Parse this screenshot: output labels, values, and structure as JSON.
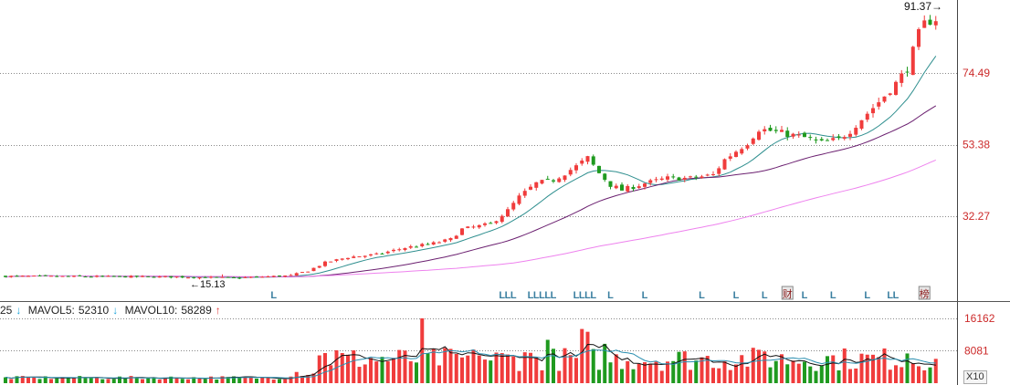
{
  "chart_data": {
    "type": "candlestick",
    "price_axis": {
      "ticks": [
        74.49,
        53.38,
        32.27
      ],
      "ylim": [
        10.5,
        95
      ]
    },
    "annotations": {
      "high": "91.37",
      "low": "15.13"
    },
    "volume_axis": {
      "ticks": [
        "16162",
        "8081"
      ],
      "unit": "X10",
      "ylim": [
        0,
        17500
      ]
    },
    "mavol": {
      "prefix": "25",
      "mavol5_label": "MAVOL5:",
      "mavol5_value": "52310",
      "mavol10_label": "MAVOL10:",
      "mavol10_value": "58289"
    },
    "markers": [
      {
        "i": 47,
        "text": "L"
      },
      {
        "i": 87,
        "text": "L"
      },
      {
        "i": 88,
        "text": "L"
      },
      {
        "i": 89,
        "text": "L"
      },
      {
        "i": 92,
        "text": "L"
      },
      {
        "i": 93,
        "text": "L"
      },
      {
        "i": 94,
        "text": "L"
      },
      {
        "i": 95,
        "text": "L"
      },
      {
        "i": 96,
        "text": "L"
      },
      {
        "i": 100,
        "text": "L"
      },
      {
        "i": 101,
        "text": "L"
      },
      {
        "i": 102,
        "text": "L"
      },
      {
        "i": 103,
        "text": "L"
      },
      {
        "i": 106,
        "text": "L"
      },
      {
        "i": 112,
        "text": "L"
      },
      {
        "i": 122,
        "text": "L"
      },
      {
        "i": 128,
        "text": "L"
      },
      {
        "i": 133,
        "text": "L"
      },
      {
        "i": 137,
        "text": "财",
        "boxed": true
      },
      {
        "i": 140,
        "text": "L"
      },
      {
        "i": 145,
        "text": "L"
      },
      {
        "i": 151,
        "text": "L"
      },
      {
        "i": 155,
        "text": "L"
      },
      {
        "i": 156,
        "text": "L"
      },
      {
        "i": 161,
        "text": "榜",
        "boxed": true
      }
    ],
    "colors": {
      "up": "#f03c3c",
      "down": "#1f9a1f",
      "ma_short": "#2f8f8f",
      "ma_mid": "#6b2070",
      "ma_long": "#ee82ee",
      "grid": "#888888",
      "marker": "#3a7fa0"
    },
    "n_bars": 164,
    "anchors": [
      [
        0,
        14.6
      ],
      [
        30,
        14.4
      ],
      [
        40,
        14.1
      ],
      [
        50,
        14.8
      ],
      [
        53,
        16.2
      ],
      [
        56,
        18.6
      ],
      [
        60,
        20.2
      ],
      [
        65,
        21.0
      ],
      [
        70,
        23.0
      ],
      [
        75,
        24.3
      ],
      [
        78,
        25.5
      ],
      [
        80,
        28.5
      ],
      [
        85,
        30.0
      ],
      [
        88,
        34.0
      ],
      [
        90,
        38.0
      ],
      [
        93,
        42.0
      ],
      [
        96,
        43.0
      ],
      [
        98,
        45.0
      ],
      [
        100,
        47.0
      ],
      [
        102,
        49.5
      ],
      [
        104,
        45.0
      ],
      [
        106,
        41.5
      ],
      [
        108,
        40.0
      ],
      [
        112,
        42.0
      ],
      [
        116,
        43.5
      ],
      [
        120,
        43.5
      ],
      [
        124,
        44.5
      ],
      [
        126,
        49.0
      ],
      [
        128,
        51.5
      ],
      [
        130,
        54.0
      ],
      [
        132,
        58.0
      ],
      [
        134,
        57.5
      ],
      [
        140,
        55.5
      ],
      [
        143,
        54.0
      ],
      [
        146,
        55.0
      ],
      [
        148,
        57.5
      ],
      [
        150,
        61.0
      ],
      [
        153,
        66.0
      ],
      [
        156,
        71.5
      ],
      [
        158,
        76.0
      ],
      [
        160,
        86.0
      ],
      [
        161,
        89.0
      ],
      [
        162,
        90.0
      ],
      [
        163,
        90.5
      ]
    ]
  }
}
